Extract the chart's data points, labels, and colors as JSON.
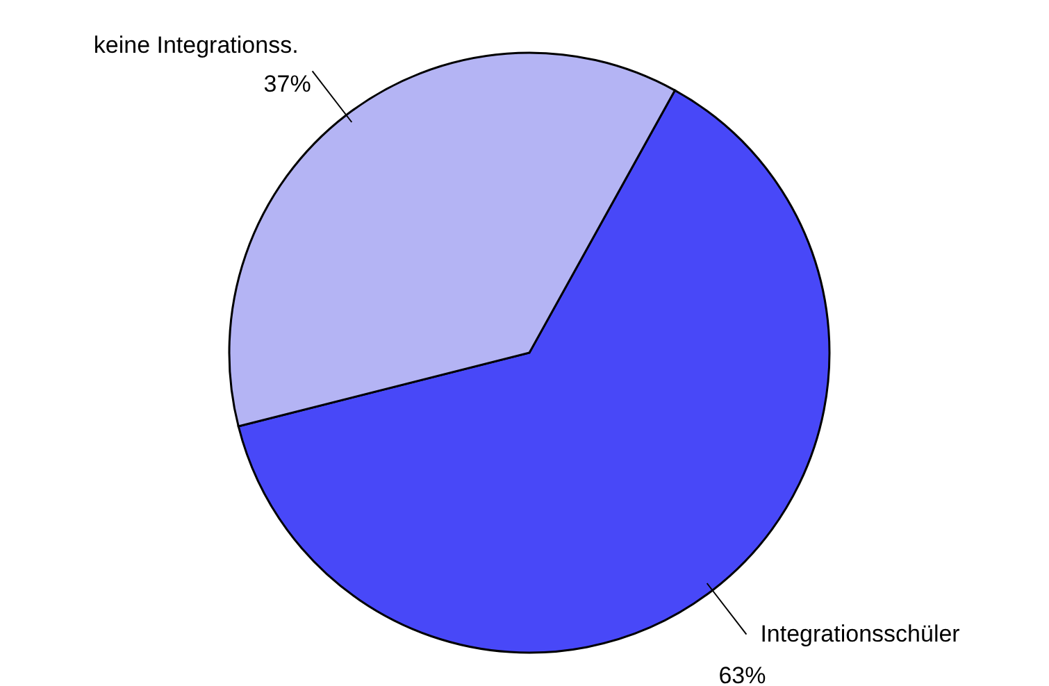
{
  "chart_data": {
    "type": "pie",
    "categories": [
      "Integrationsschüler",
      "keine Integrationss."
    ],
    "values": [
      63,
      37
    ],
    "colors": [
      "#4848f8",
      "#b4b4f4"
    ],
    "value_labels": [
      "63%",
      "37%"
    ]
  }
}
